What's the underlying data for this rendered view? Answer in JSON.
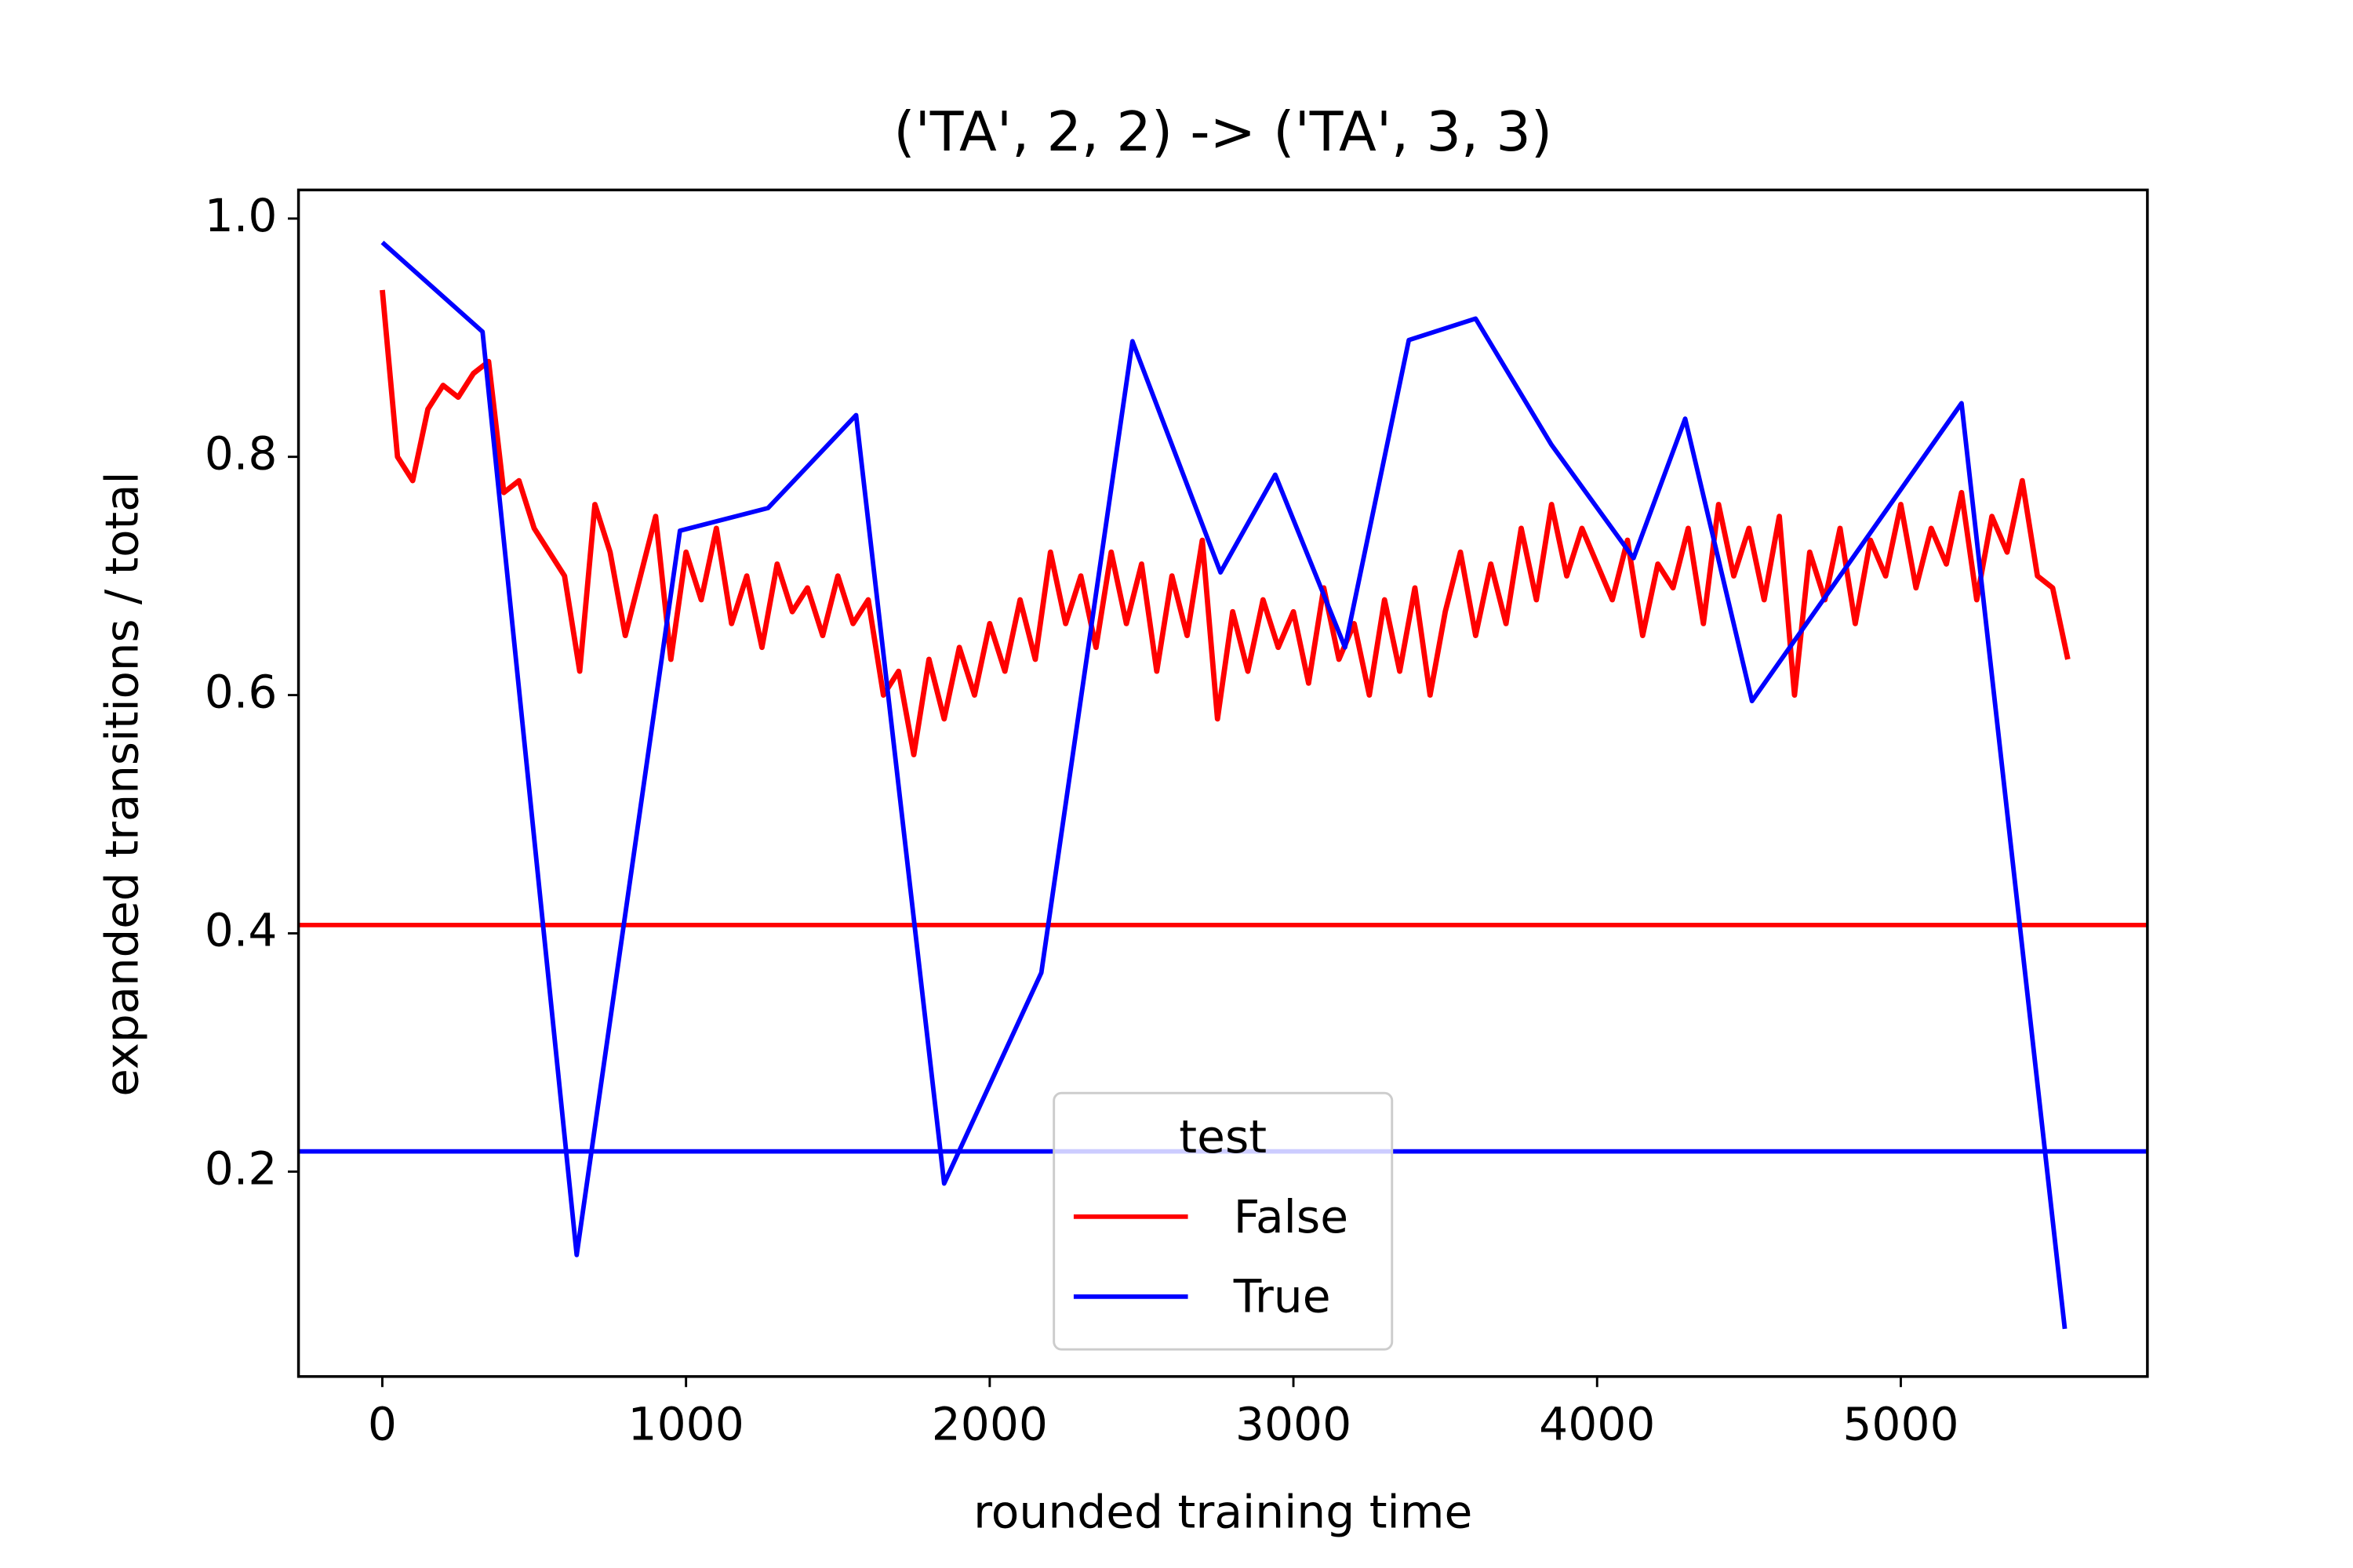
{
  "chart_data": {
    "type": "line",
    "title": "('TA', 2, 2) -> ('TA', 3, 3)",
    "xlabel": "rounded training time",
    "ylabel": "expanded transitions / total",
    "xlim": [
      -276,
      5812
    ],
    "ylim": [
      0.028,
      1.024
    ],
    "xticks": [
      0,
      1000,
      2000,
      3000,
      4000,
      5000
    ],
    "yticks": [
      0.2,
      0.4,
      0.6,
      0.8,
      {
        "value": 1.0,
        "label": "1.0"
      }
    ],
    "legend_title": "test",
    "legend_loc": "lower center",
    "series": [
      {
        "name": "False",
        "color": "#ff0000",
        "x": [
          0,
          50,
          100,
          150,
          200,
          250,
          300,
          350,
          400,
          450,
          500,
          550,
          600,
          650,
          700,
          750,
          800,
          850,
          900,
          950,
          1000,
          1050,
          1100,
          1150,
          1200,
          1250,
          1300,
          1350,
          1400,
          1450,
          1500,
          1550,
          1600,
          1650,
          1700,
          1750,
          1800,
          1850,
          1900,
          1950,
          2000,
          2050,
          2100,
          2150,
          2200,
          2250,
          2300,
          2350,
          2400,
          2450,
          2500,
          2550,
          2600,
          2650,
          2700,
          2750,
          2800,
          2850,
          2900,
          2950,
          3000,
          3050,
          3100,
          3150,
          3200,
          3250,
          3300,
          3350,
          3400,
          3450,
          3500,
          3550,
          3600,
          3650,
          3700,
          3750,
          3800,
          3850,
          3900,
          3950,
          4000,
          4050,
          4100,
          4150,
          4200,
          4250,
          4300,
          4350,
          4400,
          4450,
          4500,
          4550,
          4600,
          4650,
          4700,
          4750,
          4800,
          4850,
          4900,
          4950,
          5000,
          5050,
          5100,
          5150,
          5200,
          5250,
          5300,
          5350,
          5400,
          5450,
          5500,
          5550
        ],
        "values": [
          0.94,
          0.8,
          0.78,
          0.84,
          0.86,
          0.85,
          0.87,
          0.88,
          0.77,
          0.78,
          0.74,
          0.72,
          0.7,
          0.62,
          0.76,
          0.72,
          0.65,
          0.7,
          0.75,
          0.63,
          0.72,
          0.68,
          0.74,
          0.66,
          0.7,
          0.64,
          0.71,
          0.67,
          0.69,
          0.65,
          0.7,
          0.66,
          0.68,
          0.6,
          0.62,
          0.55,
          0.63,
          0.58,
          0.64,
          0.6,
          0.66,
          0.62,
          0.68,
          0.63,
          0.72,
          0.66,
          0.7,
          0.64,
          0.72,
          0.66,
          0.71,
          0.62,
          0.7,
          0.65,
          0.73,
          0.58,
          0.67,
          0.62,
          0.68,
          0.64,
          0.67,
          0.61,
          0.69,
          0.63,
          0.66,
          0.6,
          0.68,
          0.62,
          0.69,
          0.6,
          0.67,
          0.72,
          0.65,
          0.71,
          0.66,
          0.74,
          0.68,
          0.76,
          0.7,
          0.74,
          0.71,
          0.68,
          0.73,
          0.65,
          0.71,
          0.69,
          0.74,
          0.66,
          0.76,
          0.7,
          0.74,
          0.68,
          0.75,
          0.6,
          0.72,
          0.68,
          0.74,
          0.66,
          0.73,
          0.7,
          0.76,
          0.69,
          0.74,
          0.71,
          0.77,
          0.68,
          0.75,
          0.72,
          0.78,
          0.7,
          0.69,
          0.63
        ],
        "hline": 0.407
      },
      {
        "name": "True",
        "color": "#0000ff",
        "x": [
          0,
          330,
          640,
          980,
          1270,
          1560,
          1850,
          2170,
          2470,
          2760,
          2940,
          3170,
          3380,
          3600,
          3850,
          4120,
          4290,
          4510,
          5200,
          5540
        ],
        "values": [
          0.98,
          0.905,
          0.13,
          0.738,
          0.757,
          0.835,
          0.19,
          0.367,
          0.897,
          0.703,
          0.785,
          0.64,
          0.898,
          0.916,
          0.81,
          0.715,
          0.832,
          0.595,
          0.845,
          0.068
        ],
        "hline": 0.217
      }
    ]
  }
}
